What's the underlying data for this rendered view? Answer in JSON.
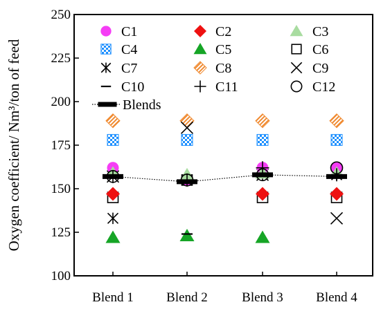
{
  "chart_data": {
    "type": "scatter",
    "categories": [
      "Blend 1",
      "Blend 2",
      "Blend 3",
      "Blend 4"
    ],
    "ylabel": "Oxygen coefficient/ Nm³/ton of feed",
    "xlabel": "",
    "title": "",
    "ylim": [
      100,
      250
    ],
    "yticks": [
      100,
      125,
      150,
      175,
      200,
      225,
      250
    ],
    "grid": false,
    "legend_position": "top, inside plot, three columns",
    "series": [
      {
        "name": "C1",
        "marker": "circle-filled",
        "color": "#f53df5",
        "values": [
          162,
          155,
          162,
          162
        ]
      },
      {
        "name": "C2",
        "marker": "diamond-filled",
        "color": "#ee1111",
        "values": [
          147,
          155,
          147,
          147
        ]
      },
      {
        "name": "C3",
        "marker": "triangle-filled",
        "color": "#a8dca0",
        "values": [
          159,
          158,
          159,
          159
        ]
      },
      {
        "name": "C4",
        "marker": "checker-square",
        "color": "#1e90ff",
        "values": [
          178,
          178,
          178,
          178
        ]
      },
      {
        "name": "C5",
        "marker": "triangle-filled",
        "color": "#16a526",
        "values": [
          122,
          123,
          122,
          159
        ]
      },
      {
        "name": "C6",
        "marker": "square-open",
        "color": "#000000",
        "values": [
          145,
          155,
          145,
          145
        ]
      },
      {
        "name": "C7",
        "marker": "asterisk",
        "color": "#000000",
        "values": [
          133,
          155,
          158,
          158
        ]
      },
      {
        "name": "C8",
        "marker": "hatched-diamond",
        "color": "#f08a30",
        "values": [
          189,
          189,
          189,
          189
        ]
      },
      {
        "name": "C9",
        "marker": "x",
        "color": "#000000",
        "values": [
          157,
          185,
          158,
          133
        ]
      },
      {
        "name": "C10",
        "marker": "dash",
        "color": "#000000",
        "values": [
          157,
          124,
          158,
          158
        ]
      },
      {
        "name": "C11",
        "marker": "plus",
        "color": "#000000",
        "values": [
          157,
          155,
          162,
          158
        ]
      },
      {
        "name": "C12",
        "marker": "circle-open",
        "color": "#000000",
        "values": [
          157,
          155,
          158,
          162
        ]
      },
      {
        "name": "Blends",
        "marker": "thick-dash",
        "line": "dotted",
        "color": "#000000",
        "values": [
          157,
          154,
          158,
          157
        ]
      }
    ]
  }
}
